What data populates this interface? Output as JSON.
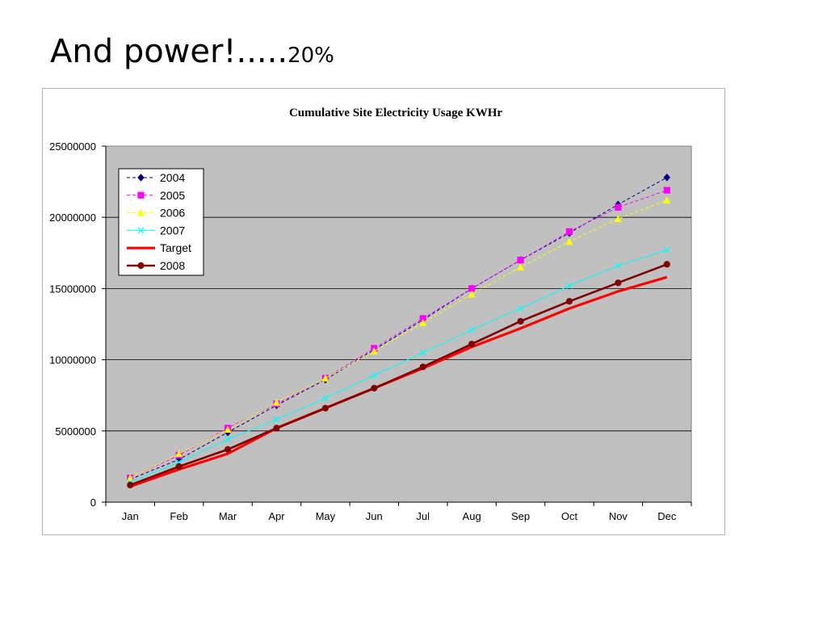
{
  "slide": {
    "title_main": "And power!.....",
    "title_suffix": "20%"
  },
  "chart_data": {
    "type": "line",
    "title": "Cumulative Site Electricity Usage KWHr",
    "xlabel": "",
    "ylabel": "",
    "categories": [
      "Jan",
      "Feb",
      "Mar",
      "Apr",
      "May",
      "Jun",
      "Jul",
      "Aug",
      "Sep",
      "Oct",
      "Nov",
      "Dec"
    ],
    "ylim": [
      0,
      25000000
    ],
    "yticks": [
      "0",
      "5000000",
      "10000000",
      "15000000",
      "20000000",
      "25000000"
    ],
    "grid": true,
    "legend_position": "top-left",
    "plot_background": "#c0c0c0",
    "series": [
      {
        "name": "2004",
        "color": "#000080",
        "dash": true,
        "marker": "diamond",
        "values": [
          1600000,
          3000000,
          4900000,
          6800000,
          8600000,
          10700000,
          12800000,
          15000000,
          17000000,
          18900000,
          20900000,
          22800000
        ]
      },
      {
        "name": "2005",
        "color": "#ff00ff",
        "dash": true,
        "marker": "square",
        "values": [
          1700000,
          3300000,
          5200000,
          6900000,
          8700000,
          10800000,
          12900000,
          15000000,
          17000000,
          19000000,
          20700000,
          21900000
        ]
      },
      {
        "name": "2006",
        "color": "#ffff00",
        "dash": true,
        "marker": "triangle",
        "values": [
          1700000,
          3400000,
          5100000,
          7000000,
          8700000,
          10600000,
          12600000,
          14600000,
          16500000,
          18300000,
          19900000,
          21200000
        ]
      },
      {
        "name": "2007",
        "color": "#00ffff",
        "dash": false,
        "marker": "x",
        "values": [
          1400000,
          2800000,
          4400000,
          5800000,
          7300000,
          8900000,
          10500000,
          12100000,
          13600000,
          15200000,
          16600000,
          17700000
        ]
      },
      {
        "name": "Target",
        "color": "#ff0000",
        "dash": false,
        "marker": "none",
        "thick": true,
        "values": [
          1100000,
          2300000,
          3400000,
          5200000,
          6600000,
          8000000,
          9400000,
          10900000,
          12200000,
          13600000,
          14800000,
          15800000
        ]
      },
      {
        "name": "2008",
        "color": "#800000",
        "dash": false,
        "marker": "circle",
        "values": [
          1200000,
          2500000,
          3700000,
          5200000,
          6600000,
          8000000,
          9500000,
          11100000,
          12700000,
          14100000,
          15400000,
          16700000
        ]
      }
    ]
  }
}
